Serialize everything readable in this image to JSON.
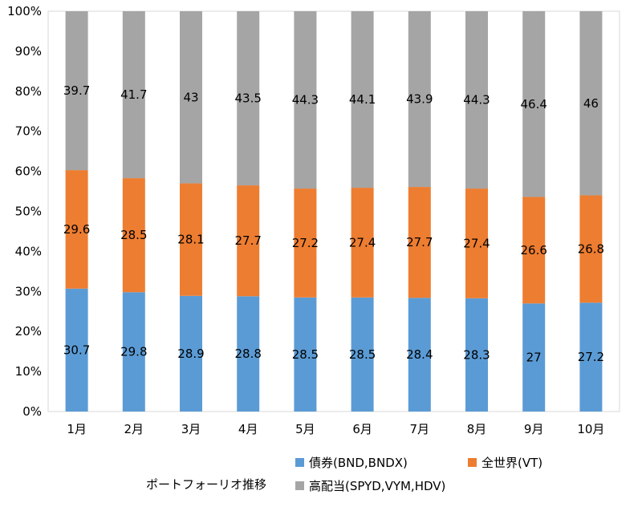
{
  "chart_data": {
    "type": "bar",
    "stacked": true,
    "percent_stacked": true,
    "title": "ポートフォーリオ推移",
    "categories": [
      "1月",
      "2月",
      "3月",
      "4月",
      "5月",
      "6月",
      "7月",
      "8月",
      "9月",
      "10月"
    ],
    "ylim": [
      0,
      100
    ],
    "yticks": [
      "0%",
      "10%",
      "20%",
      "30%",
      "40%",
      "50%",
      "60%",
      "70%",
      "80%",
      "90%",
      "100%"
    ],
    "grid": false,
    "legend_position": "bottom",
    "series": [
      {
        "name": "債券(BND,BNDX)",
        "color": "#5b9bd5",
        "values": [
          30.7,
          29.8,
          28.9,
          28.8,
          28.5,
          28.5,
          28.4,
          28.3,
          27,
          27.2
        ]
      },
      {
        "name": "全世界(VT)",
        "color": "#ed7d31",
        "values": [
          29.6,
          28.5,
          28.1,
          27.7,
          27.2,
          27.4,
          27.7,
          27.4,
          26.6,
          26.8
        ]
      },
      {
        "name": "高配当(SPYD,VYM,HDV)",
        "color": "#a5a5a5",
        "values": [
          39.7,
          41.7,
          43,
          43.5,
          44.3,
          44.1,
          43.9,
          44.3,
          46.4,
          46
        ]
      }
    ]
  }
}
